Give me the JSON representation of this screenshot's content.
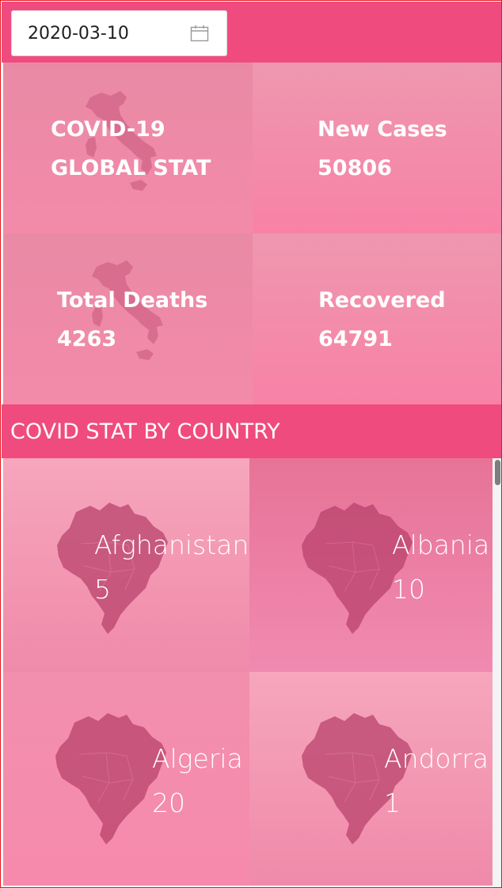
{
  "date_picker": {
    "value": "2020-03-10",
    "icon": "calendar-icon"
  },
  "global_stats": {
    "title_line1": "COVID-19",
    "title_line2": "GLOBAL STAT",
    "new_cases_label": "New Cases",
    "new_cases_value": "50806",
    "total_deaths_label": "Total Deaths",
    "total_deaths_value": "4263",
    "recovered_label": "Recovered",
    "recovered_value": "64791"
  },
  "section": {
    "title": "COVID STAT BY COUNTRY"
  },
  "countries": [
    {
      "name": "Afghanistan",
      "count": "5"
    },
    {
      "name": "Albania",
      "count": "10"
    },
    {
      "name": "Algeria",
      "count": "20"
    },
    {
      "name": "Andorra",
      "count": "1"
    }
  ],
  "colors": {
    "accent": "#f04b7f",
    "tile_pink": "#f38aaa",
    "map_overlay": "#b8406a"
  }
}
